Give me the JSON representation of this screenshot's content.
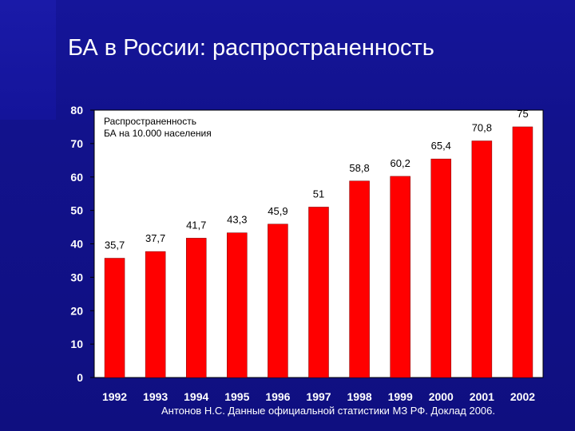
{
  "slide": {
    "title": "БА в России: распространенность",
    "footnote": "Антонов Н.С. Данные официальной статистики МЗ РФ. Доклад 2006."
  },
  "chart_data": {
    "type": "bar",
    "title": "Распространенность БА на 10.000 населения",
    "title_lines": [
      "Распространенность",
      "БА на 10.000 населения"
    ],
    "categories": [
      "1992",
      "1993",
      "1994",
      "1995",
      "1996",
      "1997",
      "1998",
      "1999",
      "2000",
      "2001",
      "2002"
    ],
    "values": [
      35.7,
      37.7,
      41.7,
      43.3,
      45.9,
      51,
      58.8,
      60.2,
      65.4,
      70.8,
      75
    ],
    "data_labels": [
      "35,7",
      "37,7",
      "41,7",
      "43,3",
      "45,9",
      "51",
      "58,8",
      "60,2",
      "65,4",
      "70,8",
      "75"
    ],
    "yticks": [
      0,
      10,
      20,
      30,
      40,
      50,
      60,
      70,
      80
    ],
    "ylim": [
      0,
      80
    ],
    "grid": false,
    "legend": "none",
    "colors": {
      "bar": "#ff0000",
      "plot_background": "#ffffff",
      "slide_background": "#11118a",
      "text": "#ffffff"
    }
  }
}
